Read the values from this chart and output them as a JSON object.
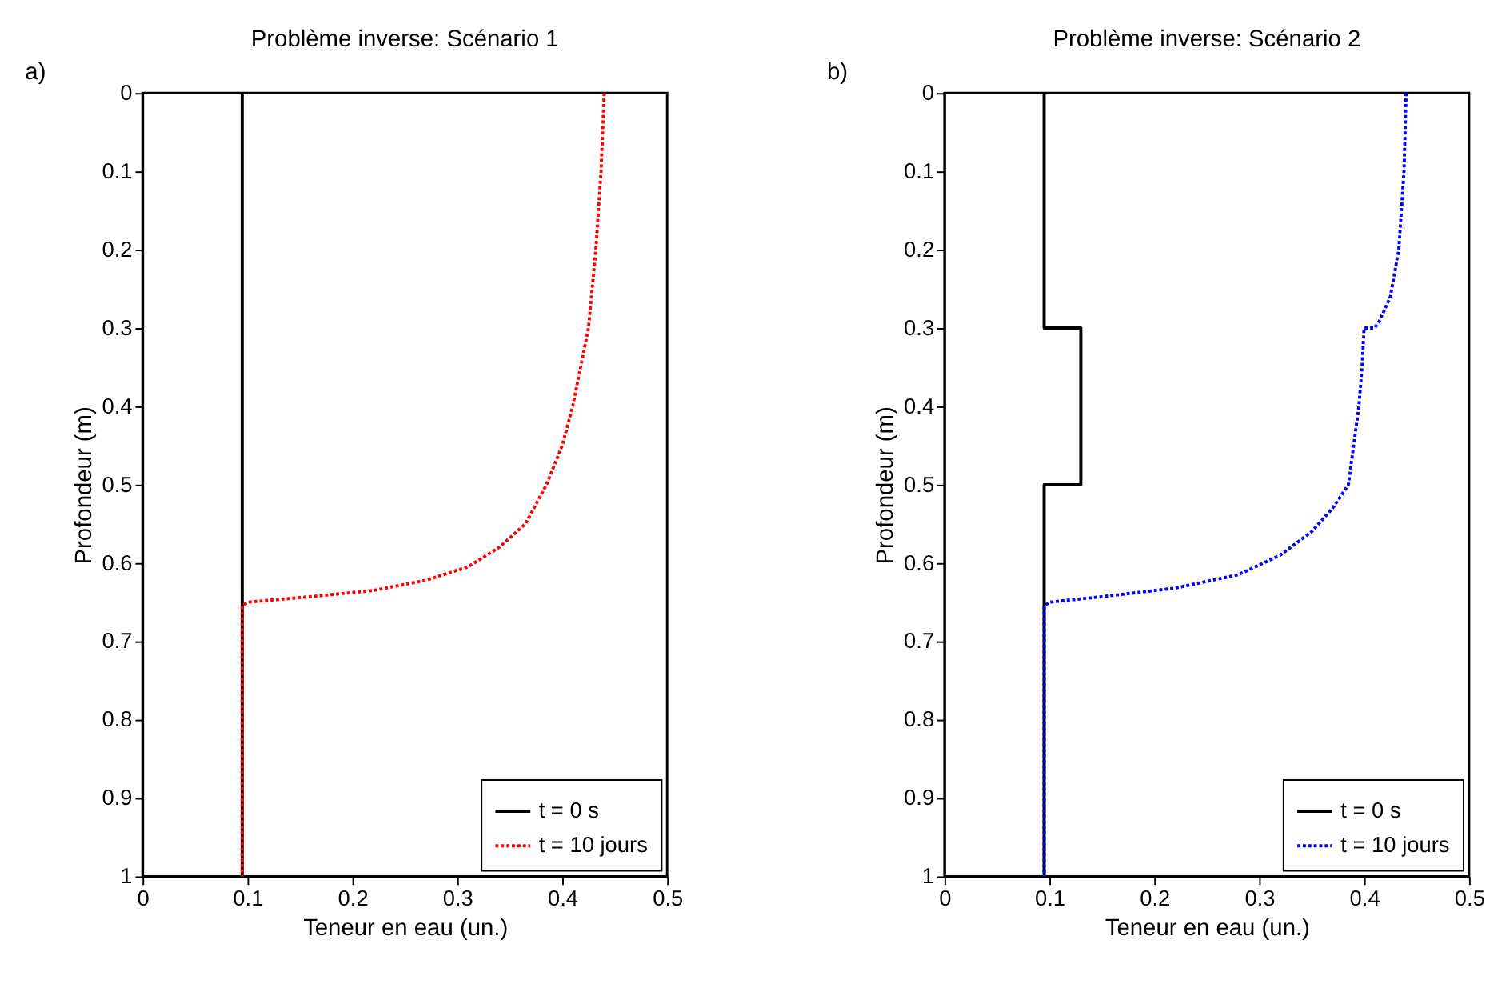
{
  "chart_data": [
    {
      "type": "line",
      "title": "Problème inverse: Scénario 1",
      "xlabel": "Teneur en eau (un.)",
      "ylabel": "Profondeur (m)",
      "annotations": [
        "a)"
      ],
      "xlim": [
        0,
        0.5
      ],
      "xticks": [
        0,
        0.1,
        0.2,
        0.3,
        0.4,
        0.5
      ],
      "ylim": [
        1,
        0
      ],
      "yticks": [
        0,
        0.1,
        0.2,
        0.3,
        0.4,
        0.5,
        0.6,
        0.7,
        0.8,
        0.9,
        1
      ],
      "grid": false,
      "legend": "bottom right",
      "series": [
        {
          "name": "t = 0 s",
          "color": "#000000",
          "line_style": "solid",
          "x": [
            0.095,
            0.095
          ],
          "values": [
            0,
            1
          ]
        },
        {
          "name": "t = 10 jours",
          "color": "#ff0000",
          "line_style": "dotted",
          "x": [
            0.44,
            0.437,
            0.432,
            0.425,
            0.41,
            0.4,
            0.385,
            0.365,
            0.34,
            0.31,
            0.27,
            0.22,
            0.16,
            0.1,
            0.095,
            0.095
          ],
          "values": [
            0,
            0.1,
            0.2,
            0.3,
            0.4,
            0.45,
            0.5,
            0.55,
            0.58,
            0.605,
            0.622,
            0.635,
            0.643,
            0.65,
            0.655,
            1
          ]
        }
      ]
    },
    {
      "type": "line",
      "title": "Problème inverse: Scénario 2",
      "xlabel": "Teneur en eau (un.)",
      "ylabel": "Profondeur (m)",
      "annotations": [
        "b)"
      ],
      "xlim": [
        0,
        0.5
      ],
      "xticks": [
        0,
        0.1,
        0.2,
        0.3,
        0.4,
        0.5
      ],
      "ylim": [
        1,
        0
      ],
      "yticks": [
        0,
        0.1,
        0.2,
        0.3,
        0.4,
        0.5,
        0.6,
        0.7,
        0.8,
        0.9,
        1
      ],
      "grid": false,
      "legend": "bottom right",
      "series": [
        {
          "name": "t = 0 s",
          "color": "#000000",
          "line_style": "solid",
          "x": [
            0.095,
            0.095,
            0.13,
            0.13,
            0.095,
            0.095
          ],
          "values": [
            0,
            0.3,
            0.3,
            0.5,
            0.5,
            1
          ]
        },
        {
          "name": "t = 10 jours",
          "color": "#0000ff",
          "line_style": "dotted",
          "x": [
            0.44,
            0.438,
            0.433,
            0.425,
            0.415,
            0.41,
            0.4,
            0.398,
            0.395,
            0.39,
            0.385,
            0.37,
            0.35,
            0.32,
            0.28,
            0.22,
            0.15,
            0.1,
            0.095,
            0.095
          ],
          "values": [
            0,
            0.1,
            0.2,
            0.26,
            0.29,
            0.3,
            0.3,
            0.35,
            0.4,
            0.45,
            0.5,
            0.53,
            0.56,
            0.59,
            0.615,
            0.632,
            0.643,
            0.65,
            0.655,
            1
          ]
        }
      ]
    }
  ]
}
